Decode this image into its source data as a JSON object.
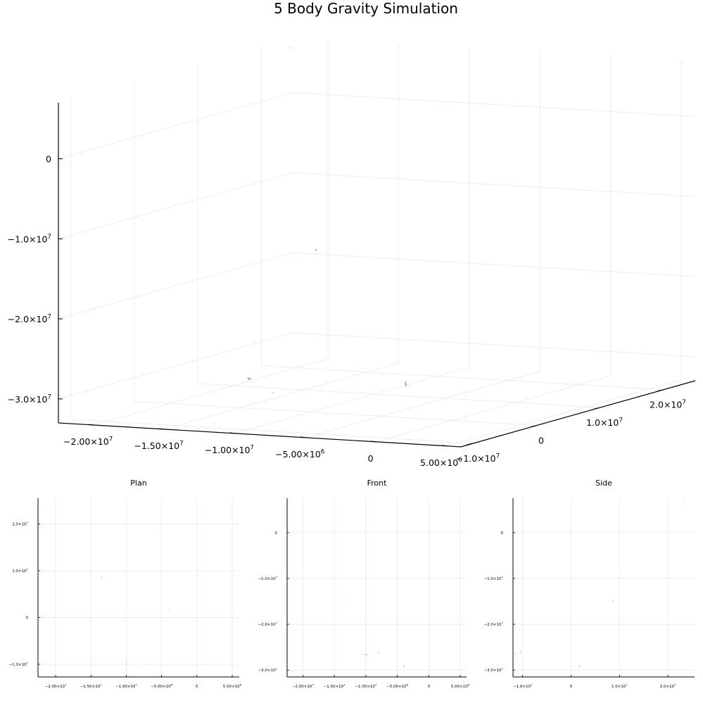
{
  "title": "5 Body Gravity Simulation",
  "colors": {
    "grid": "#ececec",
    "axis": "#000000",
    "series": [
      "#009af9",
      "#e26f46",
      "#3da44d",
      "#c271d2",
      "#ac8e18"
    ]
  },
  "chart_data": [
    {
      "type": "scatter3d",
      "title": "5 Body Gravity Simulation",
      "x_ticks": [
        {
          "v": -20000000,
          "l": "−2.00×10",
          "e": "7"
        },
        {
          "v": -15000000,
          "l": "−1.50×10",
          "e": "7"
        },
        {
          "v": -10000000,
          "l": "−1.00×10",
          "e": "7"
        },
        {
          "v": -5000000,
          "l": "−5.00×10",
          "e": "6"
        },
        {
          "v": 0,
          "l": "0",
          "e": ""
        },
        {
          "v": 5000000,
          "l": "5.00×10",
          "e": "6"
        }
      ],
      "y_ticks": [
        {
          "v": -10000000,
          "l": "−1.0×10",
          "e": "7"
        },
        {
          "v": 0,
          "l": "0",
          "e": ""
        },
        {
          "v": 10000000,
          "l": "1.0×10",
          "e": "7"
        },
        {
          "v": 20000000,
          "l": "2.0×10",
          "e": "7"
        }
      ],
      "z_ticks": [
        {
          "v": -30000000,
          "l": "−3.0×10",
          "e": "7"
        },
        {
          "v": -20000000,
          "l": "−2.0×10",
          "e": "7"
        },
        {
          "v": -10000000,
          "l": "−1.0×10",
          "e": "7"
        },
        {
          "v": 0,
          "l": "0",
          "e": ""
        }
      ],
      "xlim": [
        -22500000,
        6000000
      ],
      "ylim": [
        -12000000,
        25000000
      ],
      "zlim": [
        -33000000,
        7000000
      ],
      "grid": true,
      "legend": "none",
      "series": [
        {
          "x": [
            -10000000,
            -9800000
          ],
          "y": [
            -10000000,
            -10000000
          ],
          "z": [
            -26500000,
            -26700000
          ]
        },
        {
          "x": [
            -4000000,
            -3950000
          ],
          "y": [
            1500000,
            1500000
          ],
          "z": [
            -28900000,
            -29500000
          ]
        },
        {
          "x": [
            -13500000,
            -13400000
          ],
          "y": [
            8500000,
            8500000
          ],
          "z": [
            -15000000,
            -15000000
          ]
        },
        {
          "x": [
            -22000000,
            -21950000
          ],
          "y": [
            23500000,
            23500000
          ],
          "z": [
            6000000,
            6000000
          ]
        },
        {
          "x": [
            -8000000,
            -7950000
          ],
          "y": [
            -10500000,
            -10500000
          ],
          "z": [
            -28000000,
            -28000000
          ]
        }
      ]
    },
    {
      "type": "scatter",
      "title": "Plan",
      "x_ticks": [
        {
          "v": -20000000,
          "l": "−2.00×10",
          "e": "7"
        },
        {
          "v": -15000000,
          "l": "−1.50×10",
          "e": "7"
        },
        {
          "v": -10000000,
          "l": "−1.00×10",
          "e": "7"
        },
        {
          "v": -5000000,
          "l": "−5.00×10",
          "e": "6"
        },
        {
          "v": 0,
          "l": "0",
          "e": ""
        },
        {
          "v": 5000000,
          "l": "5.00×10",
          "e": "6"
        }
      ],
      "y_ticks": [
        {
          "v": -10000000,
          "l": "−1.0×10",
          "e": "7"
        },
        {
          "v": 0,
          "l": "0",
          "e": ""
        },
        {
          "v": 10000000,
          "l": "1.0×10",
          "e": "7"
        },
        {
          "v": 20000000,
          "l": "2.0×10",
          "e": "7"
        }
      ],
      "xlim": [
        -22500000,
        6000000
      ],
      "ylim": [
        -12700000,
        25500000
      ],
      "grid": true,
      "series": [
        {
          "x": [
            -10000000,
            -9900000
          ],
          "y": [
            -10000000,
            -10000000
          ]
        },
        {
          "x": [
            -4000000,
            -3900000
          ],
          "y": [
            1800000,
            1700000
          ]
        },
        {
          "x": [
            -13500000,
            -13500000
          ],
          "y": [
            8700000,
            8300000
          ]
        },
        {
          "x": [
            -22000000,
            -21950000
          ],
          "y": [
            23700000,
            23600000
          ]
        },
        {
          "x": [
            -8000000,
            -7900000
          ],
          "y": [
            -10500000,
            -10500000
          ]
        }
      ]
    },
    {
      "type": "scatter",
      "title": "Front",
      "x_ticks": [
        {
          "v": -20000000,
          "l": "−2.00×10",
          "e": "7"
        },
        {
          "v": -15000000,
          "l": "−1.50×10",
          "e": "7"
        },
        {
          "v": -10000000,
          "l": "−1.00×10",
          "e": "7"
        },
        {
          "v": -5000000,
          "l": "−5.00×10",
          "e": "6"
        },
        {
          "v": 0,
          "l": "0",
          "e": ""
        },
        {
          "v": 5000000,
          "l": "5.00×10",
          "e": "6"
        }
      ],
      "y_ticks": [
        {
          "v": -30000000,
          "l": "−3.0×10",
          "e": "7"
        },
        {
          "v": -20000000,
          "l": "−2.0×10",
          "e": "7"
        },
        {
          "v": -10000000,
          "l": "−1.0×10",
          "e": "7"
        },
        {
          "v": 0,
          "l": "0",
          "e": ""
        }
      ],
      "xlim": [
        -22500000,
        6000000
      ],
      "ylim": [
        -31500000,
        7500000
      ],
      "grid": true,
      "series": [
        {
          "x": [
            -10200000,
            -9800000
          ],
          "y": [
            -26500000,
            -26700000
          ]
        },
        {
          "x": [
            -4000000,
            -3950000
          ],
          "y": [
            -28900000,
            -29500000
          ]
        },
        {
          "x": [
            -13500000,
            -13400000
          ],
          "y": [
            -15000000,
            -15000000
          ]
        },
        {
          "x": [
            -22000000,
            -21950000
          ],
          "y": [
            7000000,
            6900000
          ]
        },
        {
          "x": [
            -8000000,
            -7950000
          ],
          "y": [
            -26000000,
            -26400000
          ]
        }
      ]
    },
    {
      "type": "scatter",
      "title": "Side",
      "x_ticks": [
        {
          "v": -10000000,
          "l": "−1.0×10",
          "e": "7"
        },
        {
          "v": 0,
          "l": "0",
          "e": ""
        },
        {
          "v": 10000000,
          "l": "1.0×10",
          "e": "7"
        },
        {
          "v": 20000000,
          "l": "2.0×10",
          "e": "7"
        }
      ],
      "y_ticks": [
        {
          "v": -30000000,
          "l": "−3.0×10",
          "e": "7"
        },
        {
          "v": -20000000,
          "l": "−2.0×10",
          "e": "7"
        },
        {
          "v": -10000000,
          "l": "−1.0×10",
          "e": "7"
        },
        {
          "v": 0,
          "l": "0",
          "e": ""
        }
      ],
      "xlim": [
        -12000000,
        25500000
      ],
      "ylim": [
        -31500000,
        7500000
      ],
      "grid": true,
      "series": [
        {
          "x": [
            -11500000,
            -11500000
          ],
          "y": [
            -26300000,
            -26500000
          ]
        },
        {
          "x": [
            1800000,
            1700000
          ],
          "y": [
            -28900000,
            -29500000
          ]
        },
        {
          "x": [
            8500000,
            8800000
          ],
          "y": [
            -15000000,
            -15000000
          ]
        },
        {
          "x": [
            23500000,
            23600000
          ],
          "y": [
            7000000,
            6800000
          ]
        },
        {
          "x": [
            -10500000,
            -10500000
          ],
          "y": [
            -26000000,
            -26400000
          ]
        }
      ]
    }
  ]
}
